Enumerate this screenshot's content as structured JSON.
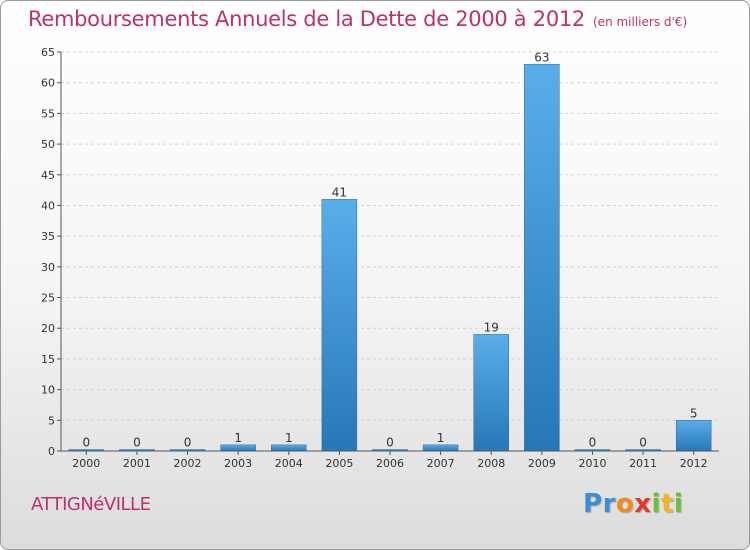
{
  "chart_data": {
    "type": "bar",
    "title": "Remboursements Annuels de la Dette de 2000 à 2012",
    "subtitle": "(en milliers d'€)",
    "categories": [
      "2000",
      "2001",
      "2002",
      "2003",
      "2004",
      "2005",
      "2006",
      "2007",
      "2008",
      "2009",
      "2010",
      "2011",
      "2012"
    ],
    "values": [
      0,
      0,
      0,
      1,
      1,
      41,
      0,
      1,
      19,
      63,
      0,
      0,
      5
    ],
    "ylim": [
      0,
      65
    ],
    "yticks": [
      0,
      5,
      10,
      15,
      20,
      25,
      30,
      35,
      40,
      45,
      50,
      55,
      60,
      65
    ],
    "grid": true,
    "bar_color_top": "#5aaee8",
    "bar_color_bottom": "#2677b8"
  },
  "footer": {
    "town": "ATTIGNéVILLE",
    "logo_letters": [
      "P",
      "r",
      "o",
      "x",
      "i",
      "t",
      "i"
    ]
  }
}
